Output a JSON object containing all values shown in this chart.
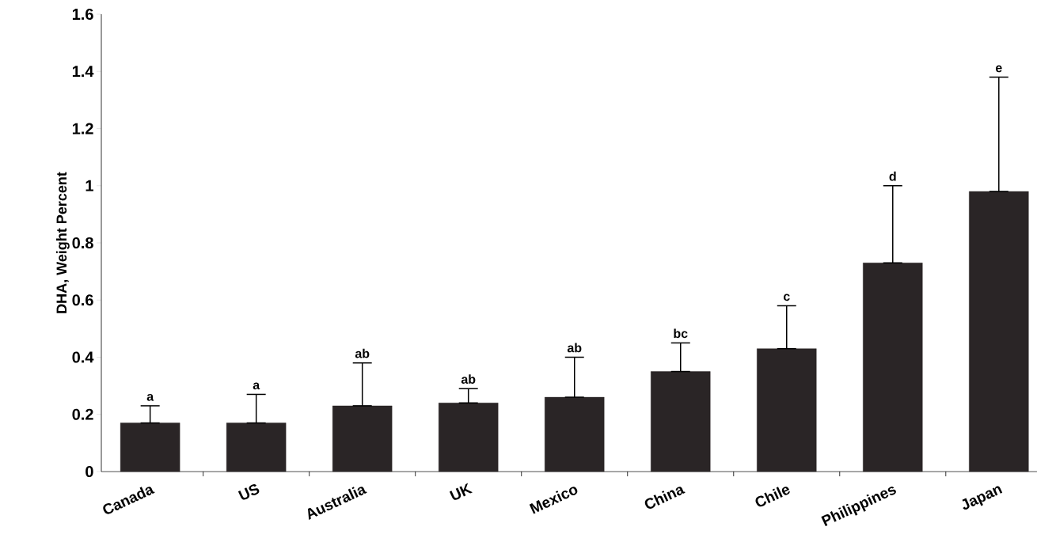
{
  "chart_data": {
    "type": "bar",
    "ylabel": "DHA, Weight Percent",
    "categories": [
      "Canada",
      "US",
      "Australia",
      "UK",
      "Mexico",
      "China",
      "Chile",
      "Philippines",
      "Japan"
    ],
    "values": [
      0.17,
      0.17,
      0.23,
      0.24,
      0.26,
      0.35,
      0.43,
      0.73,
      0.98
    ],
    "errors": [
      [
        0.17,
        0.23
      ],
      [
        0.17,
        0.27
      ],
      [
        0.23,
        0.38
      ],
      [
        0.24,
        0.29
      ],
      [
        0.26,
        0.4
      ],
      [
        0.35,
        0.45
      ],
      [
        0.43,
        0.58
      ],
      [
        0.73,
        1.0
      ],
      [
        0.98,
        1.38
      ]
    ],
    "color": "#2a2526",
    "ylim": [
      0,
      1.6
    ],
    "yticks": [
      0,
      0.2,
      0.4,
      0.6,
      0.8,
      1,
      1.2,
      1.4,
      1.6
    ],
    "annotations": [
      {
        "text": "a",
        "x": "Canada",
        "y": 0.23
      },
      {
        "text": "a",
        "x": "US",
        "y": 0.27
      },
      {
        "text": "ab",
        "x": "Australia",
        "y": 0.38
      },
      {
        "text": "ab",
        "x": "UK",
        "y": 0.29
      },
      {
        "text": "ab",
        "x": "Mexico",
        "y": 0.4
      },
      {
        "text": "bc",
        "x": "China",
        "y": 0.45
      },
      {
        "text": "c",
        "x": "Chile",
        "y": 0.58
      },
      {
        "text": "d",
        "x": "Philippines",
        "y": 1.0
      },
      {
        "text": "e",
        "x": "Japan",
        "y": 1.38
      }
    ]
  }
}
